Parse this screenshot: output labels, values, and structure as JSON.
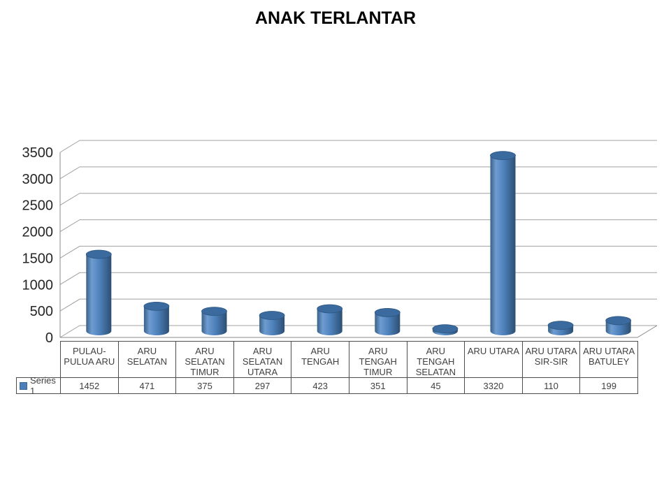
{
  "title": "ANAK TERLANTAR",
  "legend": {
    "series_label": "Series 1",
    "marker_color": "#4A7FBA"
  },
  "colors": {
    "bar_main": "#4F81BD",
    "bar_edge_dark": "#2C4F73",
    "bar_top": "#3A6A9E",
    "gridline": "#A0A0A0",
    "axis_line": "#8A8A8A",
    "table_border": "#4D4D4D",
    "table_text": "#404040",
    "tick_text": "#262626",
    "background": "#FFFFFF"
  },
  "chart_data": {
    "type": "bar",
    "subtype": "cylinder-3d",
    "title": "ANAK TERLANTAR",
    "categories": [
      "PULAU-PULUA ARU",
      "ARU SELATAN",
      "ARU SELATAN TIMUR",
      "ARU SELATAN UTARA",
      "ARU TENGAH",
      "ARU TENGAH TIMUR",
      "ARU TENGAH SELATAN",
      "ARU UTARA",
      "ARU UTARA SIR-SIR",
      "ARU UTARA BATULEY"
    ],
    "categories_wrapped": [
      "PULAU-\nPULUA ARU",
      "ARU\nSELATAN",
      "ARU\nSELATAN\nTIMUR",
      "ARU\nSELATAN\nUTARA",
      "ARU\nTENGAH",
      "ARU\nTENGAH\nTIMUR",
      "ARU\nTENGAH\nSELATAN",
      "ARU UTARA",
      "ARU UTARA\nSIR-SIR",
      "ARU UTARA\nBATULEY"
    ],
    "series": [
      {
        "name": "Series 1",
        "values": [
          1452,
          471,
          375,
          297,
          423,
          351,
          45,
          3320,
          110,
          199
        ]
      }
    ],
    "xlabel": "",
    "ylabel": "",
    "ylim": [
      0,
      3500
    ],
    "ytick_step": 500,
    "yticks": [
      0,
      500,
      1000,
      1500,
      2000,
      2500,
      3000,
      3500
    ],
    "grid": true,
    "legend_position": "bottom-left-of-data-table",
    "data_table": true
  }
}
